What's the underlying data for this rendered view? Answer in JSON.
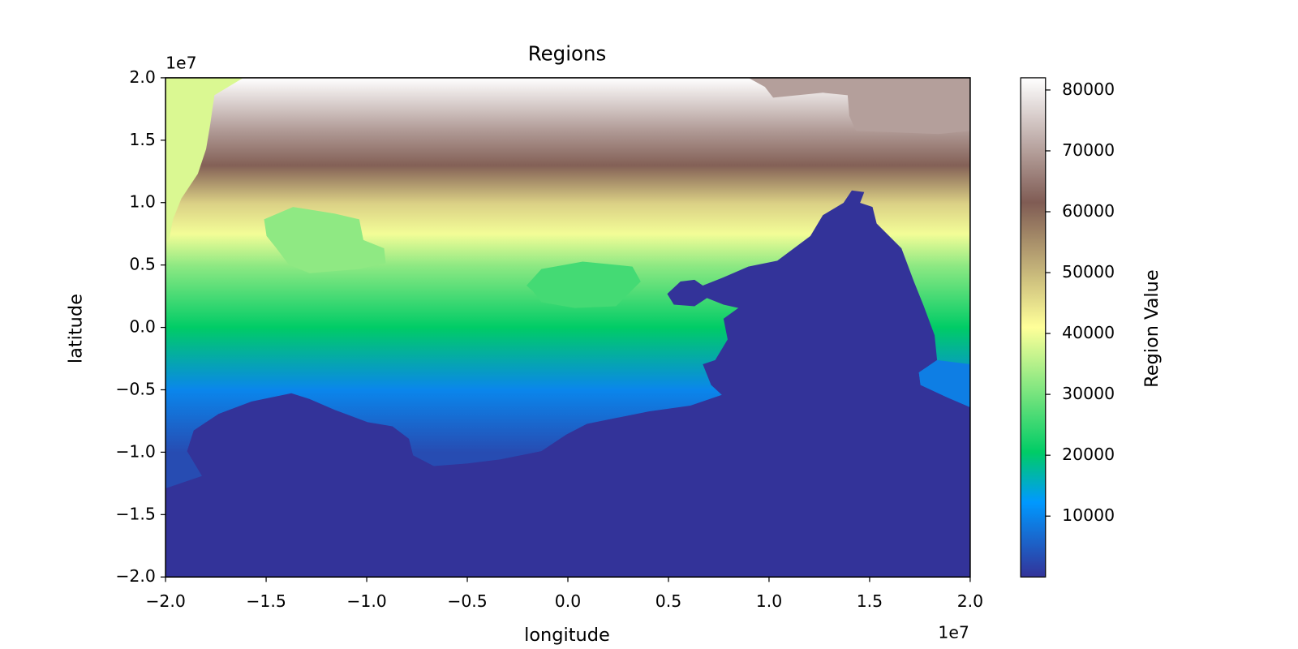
{
  "chart_data": {
    "type": "heatmap",
    "title": "Regions",
    "x_label": "longitude",
    "y_label": "latitude",
    "x_offset_label": "1e7",
    "y_offset_label": "1e7",
    "xlim": [
      -2,
      2
    ],
    "ylim": [
      -2,
      2
    ],
    "xticks": [
      {
        "value": -2,
        "label": "−2.0"
      },
      {
        "value": -1.5,
        "label": "−1.5"
      },
      {
        "value": -1,
        "label": "−1.0"
      },
      {
        "value": -0.5,
        "label": "−0.5"
      },
      {
        "value": 0,
        "label": "0.0"
      },
      {
        "value": 0.5,
        "label": "0.5"
      },
      {
        "value": 1,
        "label": "1.0"
      },
      {
        "value": 1.5,
        "label": "1.5"
      },
      {
        "value": 2,
        "label": "2.0"
      }
    ],
    "yticks": [
      {
        "value": -2,
        "label": "−2.0"
      },
      {
        "value": -1.5,
        "label": "−1.5"
      },
      {
        "value": -1,
        "label": "−1.0"
      },
      {
        "value": -0.5,
        "label": "−0.5"
      },
      {
        "value": 0,
        "label": "0.0"
      },
      {
        "value": 0.5,
        "label": "0.5"
      },
      {
        "value": 1,
        "label": "1.0"
      },
      {
        "value": 1.5,
        "label": "1.5"
      },
      {
        "value": 2,
        "label": "2.0"
      }
    ],
    "colormap": "terrain",
    "field": {
      "y": [
        -1,
        -0.5,
        0,
        0.5,
        0.75,
        1,
        1.3,
        1.6,
        2
      ],
      "values": [
        3000,
        10000,
        20500,
        32000,
        40000,
        47000,
        61000,
        70000,
        82000
      ]
    },
    "regions": [
      {
        "value": 0
      },
      {
        "value": 70000
      },
      {
        "value": 38000
      },
      {
        "value": 32000
      },
      {
        "value": 26000
      },
      {
        "value": 9000
      }
    ],
    "colorbar": {
      "label": "Region Value",
      "clim": [
        0,
        82000
      ],
      "ticks": [
        10000,
        20000,
        30000,
        40000,
        50000,
        60000,
        70000,
        80000
      ]
    }
  }
}
